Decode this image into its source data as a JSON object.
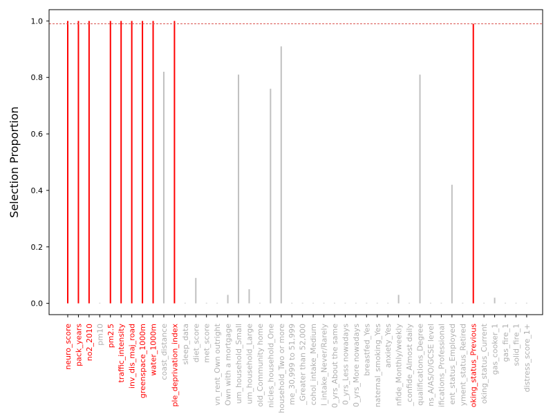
{
  "chart_data": {
    "type": "bar",
    "ylabel": "Selection Proportion",
    "xlabel": "",
    "title": "",
    "ylim": [
      -0.04,
      1.04
    ],
    "yticks": [
      "0.0",
      "0.2",
      "0.4",
      "0.6",
      "0.8",
      "1.0"
    ],
    "threshold": 0.99,
    "colors": {
      "selected": "#ff0000",
      "unselected": "#c0c0c0",
      "threshold": "#d9534f"
    },
    "categories": [
      "neuro_score",
      "pack_years",
      "no2_2010",
      "pm10",
      "pm2.5",
      "traffic_intensity",
      "inv_dis_maj_road",
      "greenspace_1000m",
      "water_1000m",
      "coast_distance",
      "ple_deprivation_index",
      "sleep_data",
      "diet_score",
      "met_score",
      "vn_rent_Own outright",
      "Own with a mortgage",
      "um_household_Small",
      "um_household_Large",
      "old_Community home",
      "nicles_household_One",
      "household_Two or more",
      "me_30,999 to 51,999",
      "_Greater than 52,000",
      "cohol_intake_Medium",
      "l_intake_Never/Rarely",
      "0_yrs_About the same",
      "0_yrs_Less nowadays",
      "0_yrs_More nowadays",
      "breastfed_Yes",
      "naternal_smoking_Yes",
      "anxiety_Yes",
      "nfide_Monthly/weekly",
      "_confide_Almost daily",
      "qualifications_Degree",
      "ns_A/AS/O/GCSE level",
      "ifications_Professional",
      "ent_status_Employed",
      "yment_status_Retired",
      "oking_status_Previous",
      "oking_status_Current",
      "gas_cooker_1",
      "gas_fire_1",
      "solid_fire_1",
      "distress_score_1+"
    ],
    "values": [
      1.0,
      1.0,
      1.0,
      0.0,
      1.0,
      1.0,
      1.0,
      1.0,
      1.0,
      0.82,
      1.0,
      0.0,
      0.09,
      0.0,
      0.0,
      0.03,
      0.81,
      0.05,
      0.0,
      0.76,
      0.91,
      0.0,
      0.0,
      0.0,
      0.0,
      0.0,
      0.0,
      0.0,
      0.0,
      0.0,
      0.0,
      0.03,
      0.0,
      0.81,
      0.0,
      0.0,
      0.42,
      0.0,
      0.99,
      0.0,
      0.02,
      0.0,
      0.0,
      0.0
    ],
    "selected": [
      true,
      true,
      true,
      false,
      true,
      true,
      true,
      true,
      true,
      false,
      true,
      false,
      false,
      false,
      false,
      false,
      false,
      false,
      false,
      false,
      false,
      false,
      false,
      false,
      false,
      false,
      false,
      false,
      false,
      false,
      false,
      false,
      false,
      false,
      false,
      false,
      false,
      false,
      true,
      false,
      false,
      false,
      false,
      false
    ]
  }
}
